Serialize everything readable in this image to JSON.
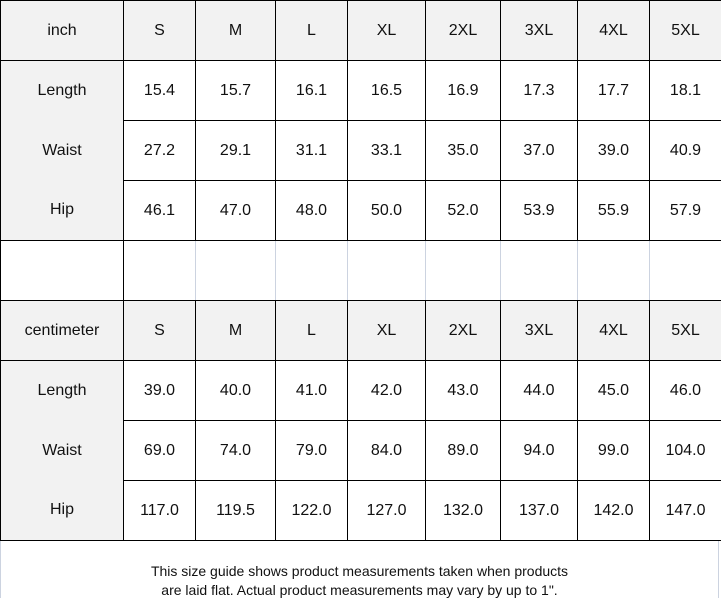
{
  "sizes": [
    "S",
    "M",
    "L",
    "XL",
    "2XL",
    "3XL",
    "4XL",
    "5XL"
  ],
  "inch": {
    "unit_label": "inch",
    "rows": [
      {
        "label": "Length",
        "values": [
          "15.4",
          "15.7",
          "16.1",
          "16.5",
          "16.9",
          "17.3",
          "17.7",
          "18.1"
        ]
      },
      {
        "label": "Waist",
        "values": [
          "27.2",
          "29.1",
          "31.1",
          "33.1",
          "35.0",
          "37.0",
          "39.0",
          "40.9"
        ]
      },
      {
        "label": "Hip",
        "values": [
          "46.1",
          "47.0",
          "48.0",
          "50.0",
          "52.0",
          "53.9",
          "55.9",
          "57.9"
        ]
      }
    ]
  },
  "centimeter": {
    "unit_label": "centimeter",
    "rows": [
      {
        "label": "Length",
        "values": [
          "39.0",
          "40.0",
          "41.0",
          "42.0",
          "43.0",
          "44.0",
          "45.0",
          "46.0"
        ]
      },
      {
        "label": "Waist",
        "values": [
          "69.0",
          "74.0",
          "79.0",
          "84.0",
          "89.0",
          "94.0",
          "99.0",
          "104.0"
        ]
      },
      {
        "label": "Hip",
        "values": [
          "117.0",
          "119.5",
          "122.0",
          "127.0",
          "132.0",
          "137.0",
          "142.0",
          "147.0"
        ]
      }
    ]
  },
  "footer": {
    "line1": "This size guide shows product measurements taken when products",
    "line2": "are laid flat. Actual product measurements may vary by up to 1\"."
  }
}
